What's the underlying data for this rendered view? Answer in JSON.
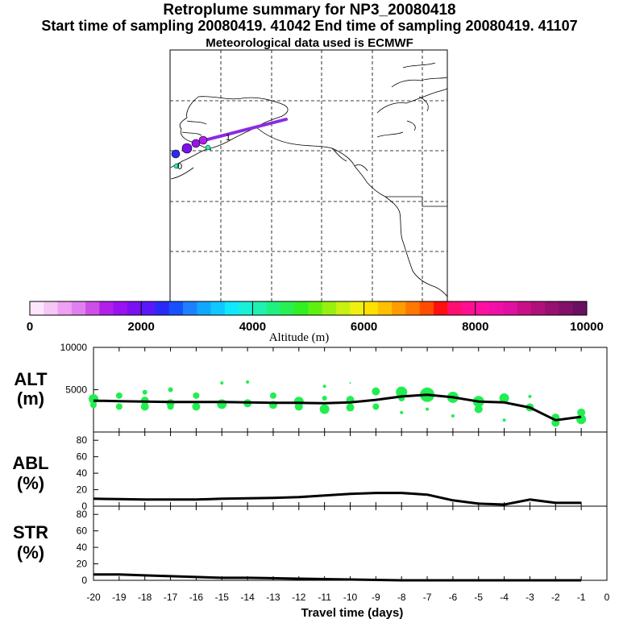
{
  "header": {
    "title": "Retroplume summary for NP3_20080418",
    "sampling": "Start time of sampling 20080419. 41042     End time of sampling 20080419. 41107",
    "met": "Meteorological data used is ECMWF"
  },
  "map": {
    "path_color": "#8a2be2",
    "map_labels": [
      "1",
      "0"
    ]
  },
  "colorbar": {
    "label": "Altitude (m)",
    "ticks": [
      "0",
      "2000",
      "4000",
      "6000",
      "8000",
      "10000"
    ],
    "range": [
      0,
      10000
    ],
    "colors": [
      "#fde6fd",
      "#f6c6f6",
      "#eea0f2",
      "#e080ee",
      "#cc4fe6",
      "#b020e8",
      "#9a12f0",
      "#7b10f0",
      "#5a18f8",
      "#2a2af8",
      "#1850ff",
      "#1e80ff",
      "#10a8ff",
      "#10c8ff",
      "#10e8ff",
      "#18f0d8",
      "#20f0b0",
      "#20f080",
      "#28f050",
      "#30f020",
      "#60f010",
      "#98f010",
      "#c8f010",
      "#f0f010",
      "#ffe000",
      "#ffc000",
      "#ff9c00",
      "#ff7800",
      "#ff4c00",
      "#ff1010",
      "#ff1070",
      "#ff1090",
      "#ff10a0",
      "#f010a8",
      "#e010a0",
      "#c81088",
      "#b0107c",
      "#981070",
      "#801068",
      "#6a1060"
    ]
  },
  "chart_data": [
    {
      "type": "line",
      "panel": "ALT",
      "label_line1": "ALT",
      "label_line2": "(m)",
      "x": [
        -20,
        -19,
        -18,
        -17,
        -16,
        -15,
        -14,
        -13,
        -12,
        -11,
        -10,
        -9,
        -8,
        -7,
        -6,
        -5,
        -4,
        -3,
        -2,
        -1
      ],
      "y": [
        3700,
        3650,
        3600,
        3550,
        3550,
        3550,
        3500,
        3450,
        3450,
        3400,
        3500,
        3800,
        4200,
        4400,
        4100,
        3600,
        3500,
        2900,
        1400,
        1800
      ],
      "ylim": [
        0,
        10000
      ],
      "yticks": [
        "5000",
        "10000"
      ],
      "ytick_values": [
        5000,
        10000
      ],
      "scatter_color": "#20ee50",
      "scatter": [
        {
          "x": -20,
          "y": 3900,
          "s": 6
        },
        {
          "x": -20,
          "y": 3200,
          "s": 4
        },
        {
          "x": -19,
          "y": 4300,
          "s": 4
        },
        {
          "x": -19,
          "y": 3000,
          "s": 4
        },
        {
          "x": -18,
          "y": 4700,
          "s": 3
        },
        {
          "x": -18,
          "y": 3700,
          "s": 5
        },
        {
          "x": -18,
          "y": 3000,
          "s": 5
        },
        {
          "x": -17,
          "y": 5000,
          "s": 3
        },
        {
          "x": -17,
          "y": 3400,
          "s": 5
        },
        {
          "x": -17,
          "y": 3000,
          "s": 4
        },
        {
          "x": -16,
          "y": 4300,
          "s": 4
        },
        {
          "x": -16,
          "y": 3000,
          "s": 5
        },
        {
          "x": -15,
          "y": 5800,
          "s": 2
        },
        {
          "x": -15,
          "y": 3300,
          "s": 6
        },
        {
          "x": -14,
          "y": 5900,
          "s": 2
        },
        {
          "x": -14,
          "y": 3400,
          "s": 5
        },
        {
          "x": -13,
          "y": 4300,
          "s": 4
        },
        {
          "x": -13,
          "y": 3200,
          "s": 5
        },
        {
          "x": -12,
          "y": 3600,
          "s": 6
        },
        {
          "x": -12,
          "y": 3000,
          "s": 5
        },
        {
          "x": -11,
          "y": 5400,
          "s": 2
        },
        {
          "x": -11,
          "y": 4000,
          "s": 3
        },
        {
          "x": -11,
          "y": 2700,
          "s": 6
        },
        {
          "x": -10,
          "y": 5800,
          "s": 1
        },
        {
          "x": -10,
          "y": 3800,
          "s": 5
        },
        {
          "x": -10,
          "y": 2900,
          "s": 5
        },
        {
          "x": -9,
          "y": 4800,
          "s": 5
        },
        {
          "x": -9,
          "y": 3000,
          "s": 4
        },
        {
          "x": -8,
          "y": 4700,
          "s": 7
        },
        {
          "x": -8,
          "y": 4000,
          "s": 4
        },
        {
          "x": -8,
          "y": 2300,
          "s": 2
        },
        {
          "x": -7,
          "y": 4400,
          "s": 9
        },
        {
          "x": -7,
          "y": 2700,
          "s": 2
        },
        {
          "x": -6,
          "y": 4100,
          "s": 7
        },
        {
          "x": -6,
          "y": 1900,
          "s": 2
        },
        {
          "x": -5,
          "y": 3600,
          "s": 7
        },
        {
          "x": -5,
          "y": 2700,
          "s": 5
        },
        {
          "x": -4,
          "y": 4000,
          "s": 6
        },
        {
          "x": -4,
          "y": 1400,
          "s": 2
        },
        {
          "x": -3,
          "y": 4200,
          "s": 2
        },
        {
          "x": -3,
          "y": 2900,
          "s": 5
        },
        {
          "x": -2,
          "y": 1700,
          "s": 5
        },
        {
          "x": -2,
          "y": 1100,
          "s": 5
        },
        {
          "x": -1,
          "y": 2300,
          "s": 5
        },
        {
          "x": -1,
          "y": 1500,
          "s": 6
        }
      ]
    },
    {
      "type": "line",
      "panel": "ABL",
      "label_line1": "ABL",
      "label_line2": "(%)",
      "x": [
        -20,
        -19,
        -18,
        -17,
        -16,
        -15,
        -14,
        -13,
        -12,
        -11,
        -10,
        -9,
        -8,
        -7,
        -6,
        -5,
        -4,
        -3,
        -2,
        -1
      ],
      "y": [
        9,
        8.5,
        8,
        8,
        8,
        9,
        9.5,
        10,
        11,
        13,
        15,
        16,
        16,
        14,
        7,
        3,
        2,
        8,
        4,
        4
      ],
      "ylim": [
        0,
        90
      ],
      "yticks": [
        "0",
        "20",
        "40",
        "60",
        "80"
      ],
      "ytick_values": [
        0,
        20,
        40,
        60,
        80
      ]
    },
    {
      "type": "line",
      "panel": "STR",
      "label_line1": "STR",
      "label_line2": "(%)",
      "x": [
        -20,
        -19,
        -18,
        -17,
        -16,
        -15,
        -14,
        -13,
        -12,
        -11,
        -10,
        -9,
        -8,
        -7,
        -6,
        -5,
        -4,
        -3,
        -2,
        -1
      ],
      "y": [
        7,
        7,
        6,
        5,
        4,
        3,
        3,
        2.5,
        2,
        1.5,
        1,
        0.5,
        0,
        0,
        0,
        0,
        0,
        0,
        0,
        0
      ],
      "ylim": [
        0,
        90
      ],
      "yticks": [
        "0",
        "20",
        "40",
        "60",
        "80"
      ],
      "ytick_values": [
        0,
        20,
        40,
        60,
        80
      ]
    }
  ],
  "xaxis": {
    "label": "Travel time (days)",
    "ticks": [
      "-20",
      "-19",
      "-18",
      "-17",
      "-16",
      "-15",
      "-14",
      "-13",
      "-12",
      "-11",
      "-10",
      "-9",
      "-8",
      "-7",
      "-6",
      "-5",
      "-4",
      "-3",
      "-2",
      "-1",
      "0"
    ],
    "tick_values": [
      -20,
      -19,
      -18,
      -17,
      -16,
      -15,
      -14,
      -13,
      -12,
      -11,
      -10,
      -9,
      -8,
      -7,
      -6,
      -5,
      -4,
      -3,
      -2,
      -1,
      0
    ],
    "range": [
      -20,
      0
    ]
  }
}
